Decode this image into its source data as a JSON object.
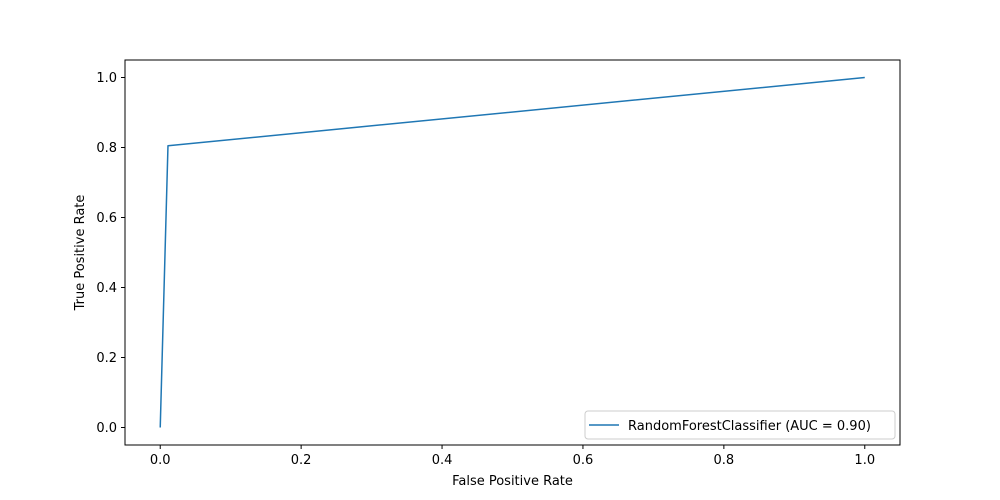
{
  "chart_data": {
    "type": "line",
    "title": "",
    "xlabel": "False Positive Rate",
    "ylabel": "True Positive Rate",
    "xlim": [
      -0.05,
      1.05
    ],
    "ylim": [
      -0.05,
      1.05
    ],
    "xticks": [
      0.0,
      0.2,
      0.4,
      0.6,
      0.8,
      1.0
    ],
    "yticks": [
      0.0,
      0.2,
      0.4,
      0.6,
      0.8,
      1.0
    ],
    "xtick_labels": [
      "0.0",
      "0.2",
      "0.4",
      "0.6",
      "0.8",
      "1.0"
    ],
    "ytick_labels": [
      "0.0",
      "0.2",
      "0.4",
      "0.6",
      "0.8",
      "1.0"
    ],
    "grid": false,
    "legend_position": "lower-right",
    "series": [
      {
        "name": "RandomForestClassifier (AUC = 0.90)",
        "color": "#1f77b4",
        "x": [
          0.0,
          0.011,
          1.0
        ],
        "y": [
          0.0,
          0.805,
          1.0
        ]
      }
    ]
  }
}
